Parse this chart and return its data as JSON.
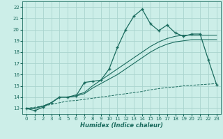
{
  "title": "",
  "xlabel": "Humidex (Indice chaleur)",
  "background_color": "#cceee8",
  "grid_color": "#aad4ce",
  "line_color": "#1a6b5e",
  "x_data": [
    0,
    1,
    2,
    3,
    4,
    5,
    6,
    7,
    8,
    9,
    10,
    11,
    12,
    13,
    14,
    15,
    16,
    17,
    18,
    19,
    20,
    21,
    22,
    23
  ],
  "y_main": [
    13.0,
    12.8,
    13.1,
    13.5,
    14.0,
    14.0,
    14.1,
    15.3,
    15.4,
    15.5,
    16.5,
    18.4,
    20.0,
    21.2,
    21.8,
    20.5,
    19.9,
    20.4,
    19.7,
    19.4,
    19.6,
    19.6,
    17.3,
    15.1
  ],
  "y_upper": [
    13.0,
    13.0,
    13.2,
    13.5,
    14.0,
    14.0,
    14.2,
    14.4,
    15.0,
    15.5,
    16.0,
    16.5,
    17.0,
    17.5,
    18.0,
    18.5,
    18.9,
    19.2,
    19.4,
    19.5,
    19.5,
    19.5,
    19.5,
    19.5
  ],
  "y_lower": [
    13.0,
    13.0,
    13.2,
    13.5,
    14.0,
    14.0,
    14.1,
    14.3,
    14.8,
    15.2,
    15.6,
    16.0,
    16.5,
    17.0,
    17.5,
    18.0,
    18.4,
    18.7,
    18.9,
    19.0,
    19.1,
    19.1,
    19.1,
    19.1
  ],
  "y_dashed": [
    13.0,
    13.1,
    13.2,
    13.35,
    13.5,
    13.65,
    13.7,
    13.8,
    13.9,
    14.0,
    14.1,
    14.2,
    14.3,
    14.4,
    14.5,
    14.65,
    14.75,
    14.85,
    14.9,
    15.0,
    15.05,
    15.1,
    15.15,
    15.2
  ],
  "ylim": [
    12.5,
    22.5
  ],
  "xlim": [
    -0.5,
    23.5
  ],
  "yticks": [
    13,
    14,
    15,
    16,
    17,
    18,
    19,
    20,
    21,
    22
  ],
  "xticks": [
    0,
    1,
    2,
    3,
    4,
    5,
    6,
    7,
    8,
    9,
    10,
    11,
    12,
    13,
    14,
    15,
    16,
    17,
    18,
    19,
    20,
    21,
    22,
    23
  ]
}
